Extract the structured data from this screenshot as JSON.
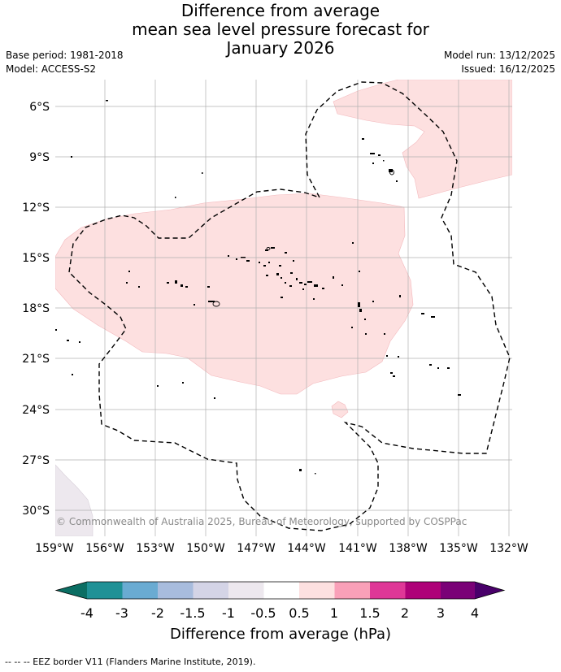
{
  "title": {
    "line1": "Difference from average",
    "line2": "mean sea level pressure forecast for",
    "line3": "January 2026"
  },
  "meta": {
    "base_period": "Base period: 1981-2018",
    "model": "Model: ACCESS-S2",
    "model_run": "Model run: 13/12/2025",
    "issued": "Issued: 16/12/2025"
  },
  "map": {
    "lat_labels": [
      "6°S",
      "9°S",
      "12°S",
      "15°S",
      "18°S",
      "21°S",
      "24°S",
      "27°S",
      "30°S"
    ],
    "lon_labels": [
      "159°W",
      "156°W",
      "153°W",
      "150°W",
      "147°W",
      "144°W",
      "141°W",
      "138°W",
      "135°W",
      "132°W"
    ],
    "copyright": "© Commonwealth of Australia 2025, Bureau of Meteorology, supported by COSPPac",
    "colors": {
      "anomaly_0_5_to_1": "#fde0e0",
      "anomaly_neg_0_5_to_neg_1": "#ede8ee",
      "grid": "#b0b0b0",
      "eez": "#000000"
    }
  },
  "colorbar": {
    "ticks": [
      "-4",
      "-3",
      "-2",
      "-1.5",
      "-1",
      "-0.5",
      "0.5",
      "1",
      "1.5",
      "2",
      "3",
      "4"
    ],
    "colors": [
      "#0b6e63",
      "#1f9196",
      "#6aabd2",
      "#a8bcdd",
      "#d4d4e6",
      "#ede8ee",
      "#ffffff",
      "#fde0e0",
      "#f9a0b8",
      "#df3797",
      "#ae0178",
      "#7a0177",
      "#49006a"
    ],
    "title": "Difference from average (hPa)"
  },
  "footer": "--  --  -- EEZ border V11 (Flanders Marine Institute, 2019)."
}
